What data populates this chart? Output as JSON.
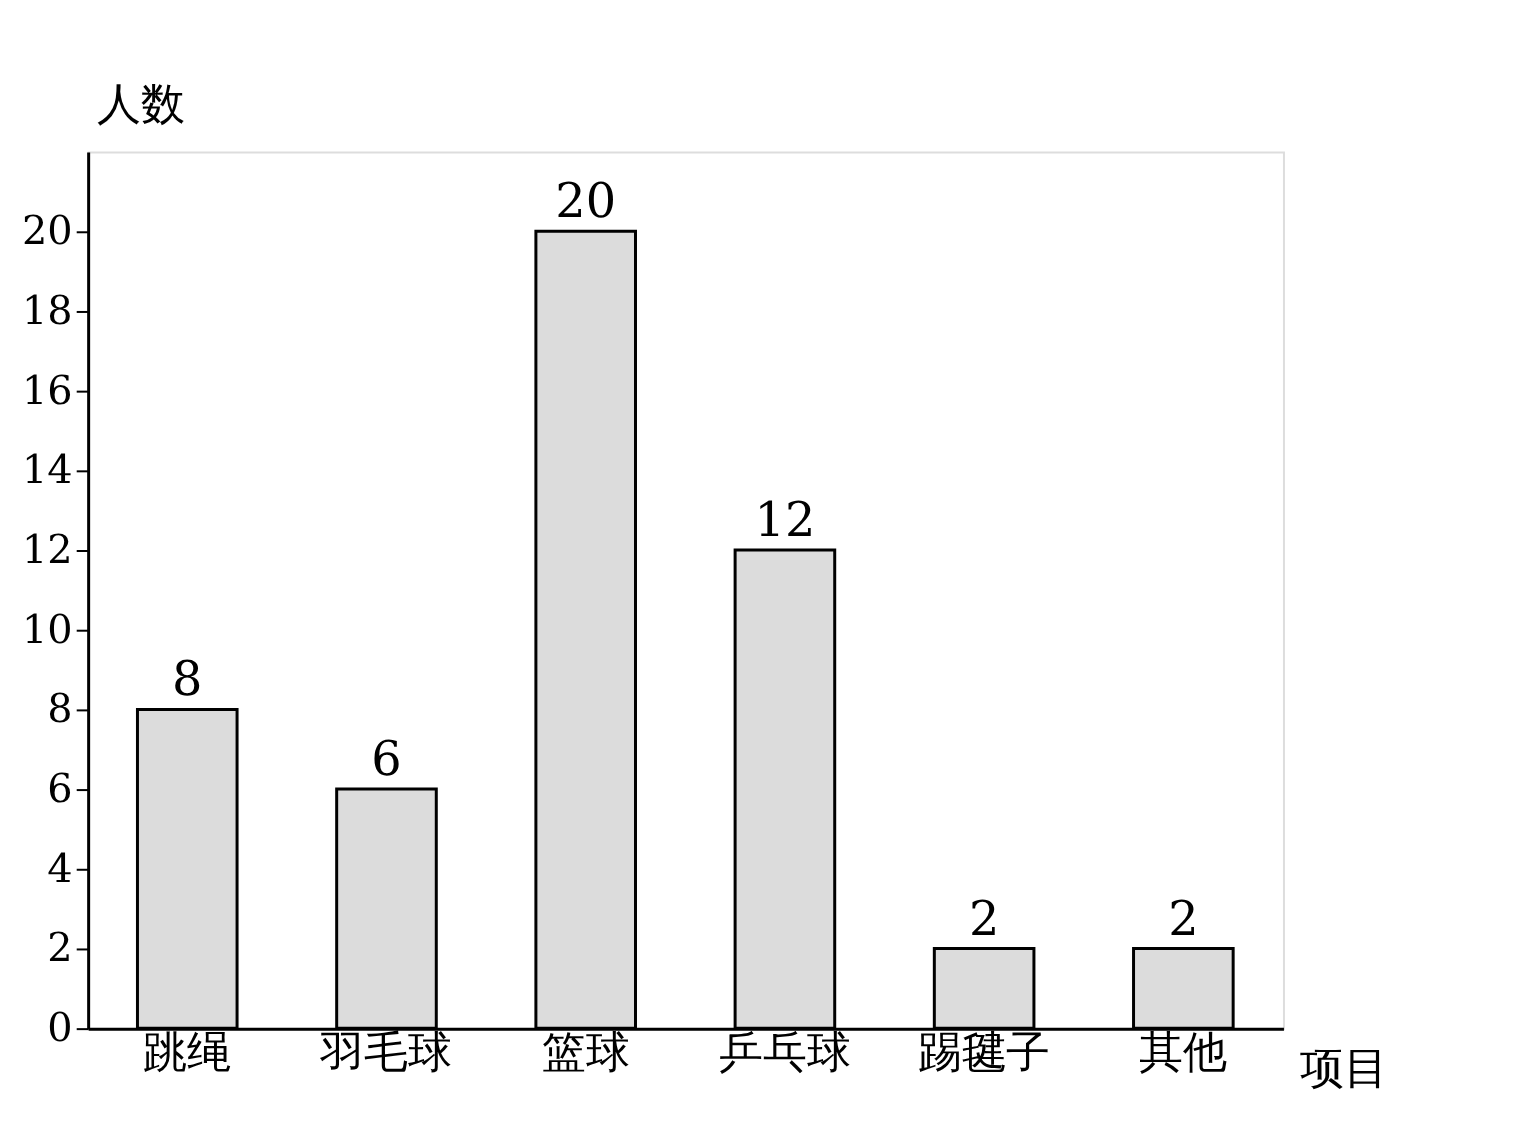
{
  "chart_data": {
    "type": "bar",
    "categories": [
      "跳绳",
      "羽毛球",
      "篮球",
      "乒乓球",
      "踢毽子",
      "其他"
    ],
    "values": [
      8,
      6,
      20,
      12,
      2,
      2
    ],
    "color": "#dcdcdc",
    "xlabel": "项目",
    "ylabel": "人数",
    "ylim": [
      0,
      22
    ],
    "yticks": [
      0,
      2,
      4,
      6,
      8,
      10,
      12,
      14,
      16,
      18,
      20
    ],
    "data_labels": true,
    "grid": false
  }
}
